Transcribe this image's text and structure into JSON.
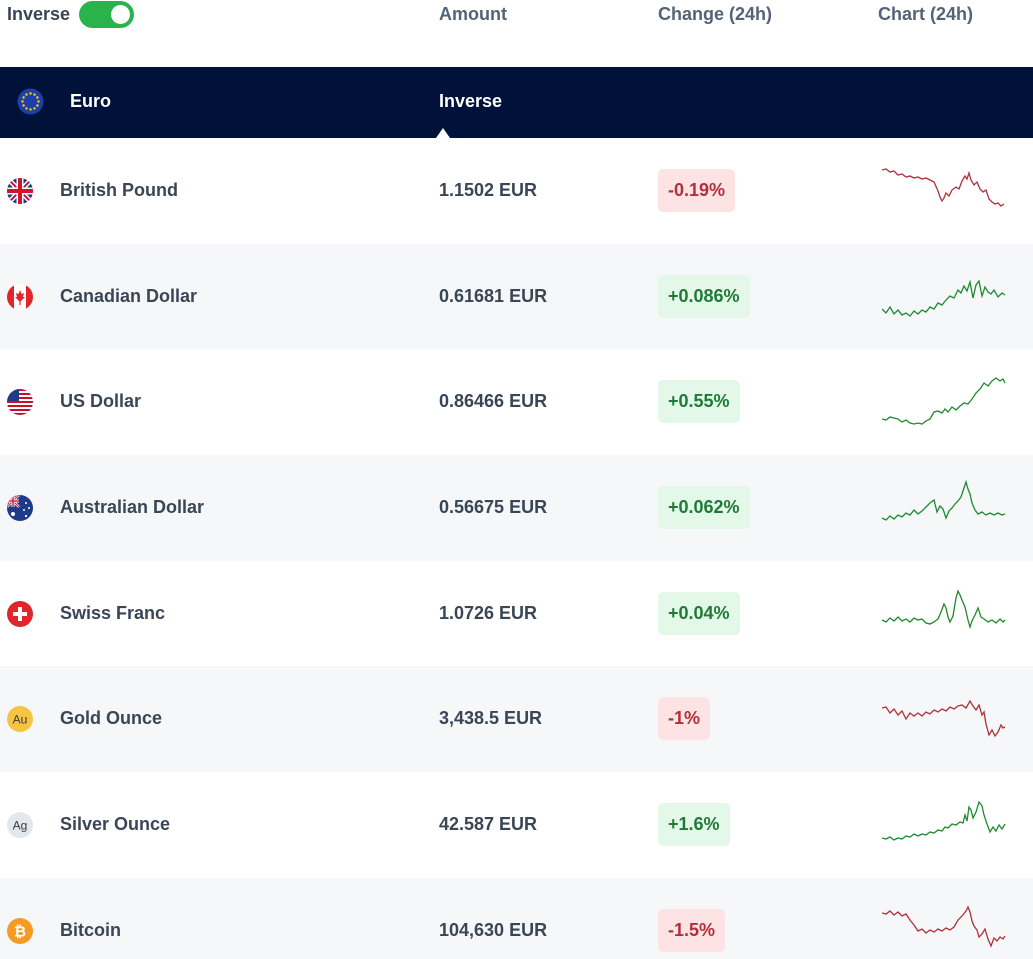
{
  "header": {
    "inverse_label": "Inverse",
    "inverse_on": true,
    "col_amount": "Amount",
    "col_change": "Change (24h)",
    "col_chart": "Chart (24h)"
  },
  "base": {
    "name": "Euro",
    "mode": "Inverse",
    "icon": "eu-flag-icon"
  },
  "colors": {
    "navy": "#00123a",
    "toggle_green": "#2ab34b",
    "up_text": "#1f7a36",
    "up_bg": "#e3f8e8",
    "down_text": "#b0303a",
    "down_bg": "#fde3e3"
  },
  "rows": [
    {
      "name": "British Pound",
      "amount": "1.1502 EUR",
      "change": "-0.19%",
      "trend": "down",
      "icon": "gb-flag-icon"
    },
    {
      "name": "Canadian Dollar",
      "amount": "0.61681 EUR",
      "change": "+0.086%",
      "trend": "up",
      "icon": "ca-flag-icon"
    },
    {
      "name": "US Dollar",
      "amount": "0.86466 EUR",
      "change": "+0.55%",
      "trend": "up",
      "icon": "us-flag-icon"
    },
    {
      "name": "Australian Dollar",
      "amount": "0.56675 EUR",
      "change": "+0.062%",
      "trend": "up",
      "icon": "au-flag-icon"
    },
    {
      "name": "Swiss Franc",
      "amount": "1.0726 EUR",
      "change": "+0.04%",
      "trend": "up",
      "icon": "ch-flag-icon"
    },
    {
      "name": "Gold Ounce",
      "amount": "3,438.5 EUR",
      "change": "-1%",
      "trend": "down",
      "icon": "gold-coin-icon",
      "badge": "Au"
    },
    {
      "name": "Silver Ounce",
      "amount": "42.587 EUR",
      "change": "+1.6%",
      "trend": "up",
      "icon": "silver-coin-icon",
      "badge": "Ag"
    },
    {
      "name": "Bitcoin",
      "amount": "104,630 EUR",
      "change": "-1.5%",
      "trend": "down",
      "icon": "bitcoin-icon"
    }
  ]
}
